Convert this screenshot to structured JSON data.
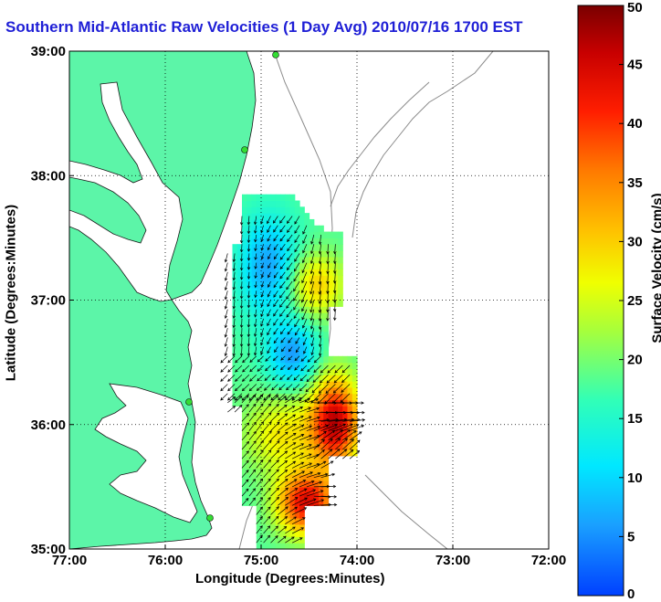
{
  "title": "Southern Mid-Atlantic Raw Velocities (1 Day Avg) 2010/07/16 1700 EST",
  "chart_data": {
    "type": "heatmap",
    "subtype": "vector-field map",
    "title": "Southern Mid-Atlantic Raw Velocities (1 Day Avg) 2010/07/16 1700 EST",
    "xlabel": "Longitude (Degrees:Minutes)",
    "ylabel": "Latitude (Degrees:Minutes)",
    "xlim": [
      -77,
      -72
    ],
    "ylim": [
      35,
      39
    ],
    "x_ticks": [
      "77:00",
      "76:00",
      "75:00",
      "74:00",
      "73:00",
      "72:00"
    ],
    "y_ticks": [
      "39:00",
      "38:00",
      "37:00",
      "36:00",
      "35:00"
    ],
    "grid": true,
    "colorbar": {
      "label": "Surface Velocity (cm/s)",
      "range": [
        0,
        50
      ],
      "ticks": [
        "0",
        "5",
        "10",
        "15",
        "20",
        "25",
        "30",
        "35",
        "40",
        "45",
        "50"
      ]
    },
    "velocity_regions": [
      {
        "region": "northern coverage (37.0-37.8N, 74.2-75.2W)",
        "speed_cm_s": [
          5,
          30
        ],
        "dominant_direction": "south-southwest"
      },
      {
        "region": "central-west near shore (36.3-37.0N, 74.7-75.3W)",
        "speed_cm_s": [
          5,
          12
        ],
        "dominant_direction": "southwest"
      },
      {
        "region": "central-east offshore (35.7-36.3N, 74.0-74.5W)",
        "speed_cm_s": [
          35,
          50
        ],
        "dominant_direction": "east-northeast"
      },
      {
        "region": "southern coverage (35.0-35.7N, 74.3-75.3W)",
        "speed_cm_s": [
          20,
          50
        ],
        "dominant_direction": "northeast"
      }
    ]
  }
}
